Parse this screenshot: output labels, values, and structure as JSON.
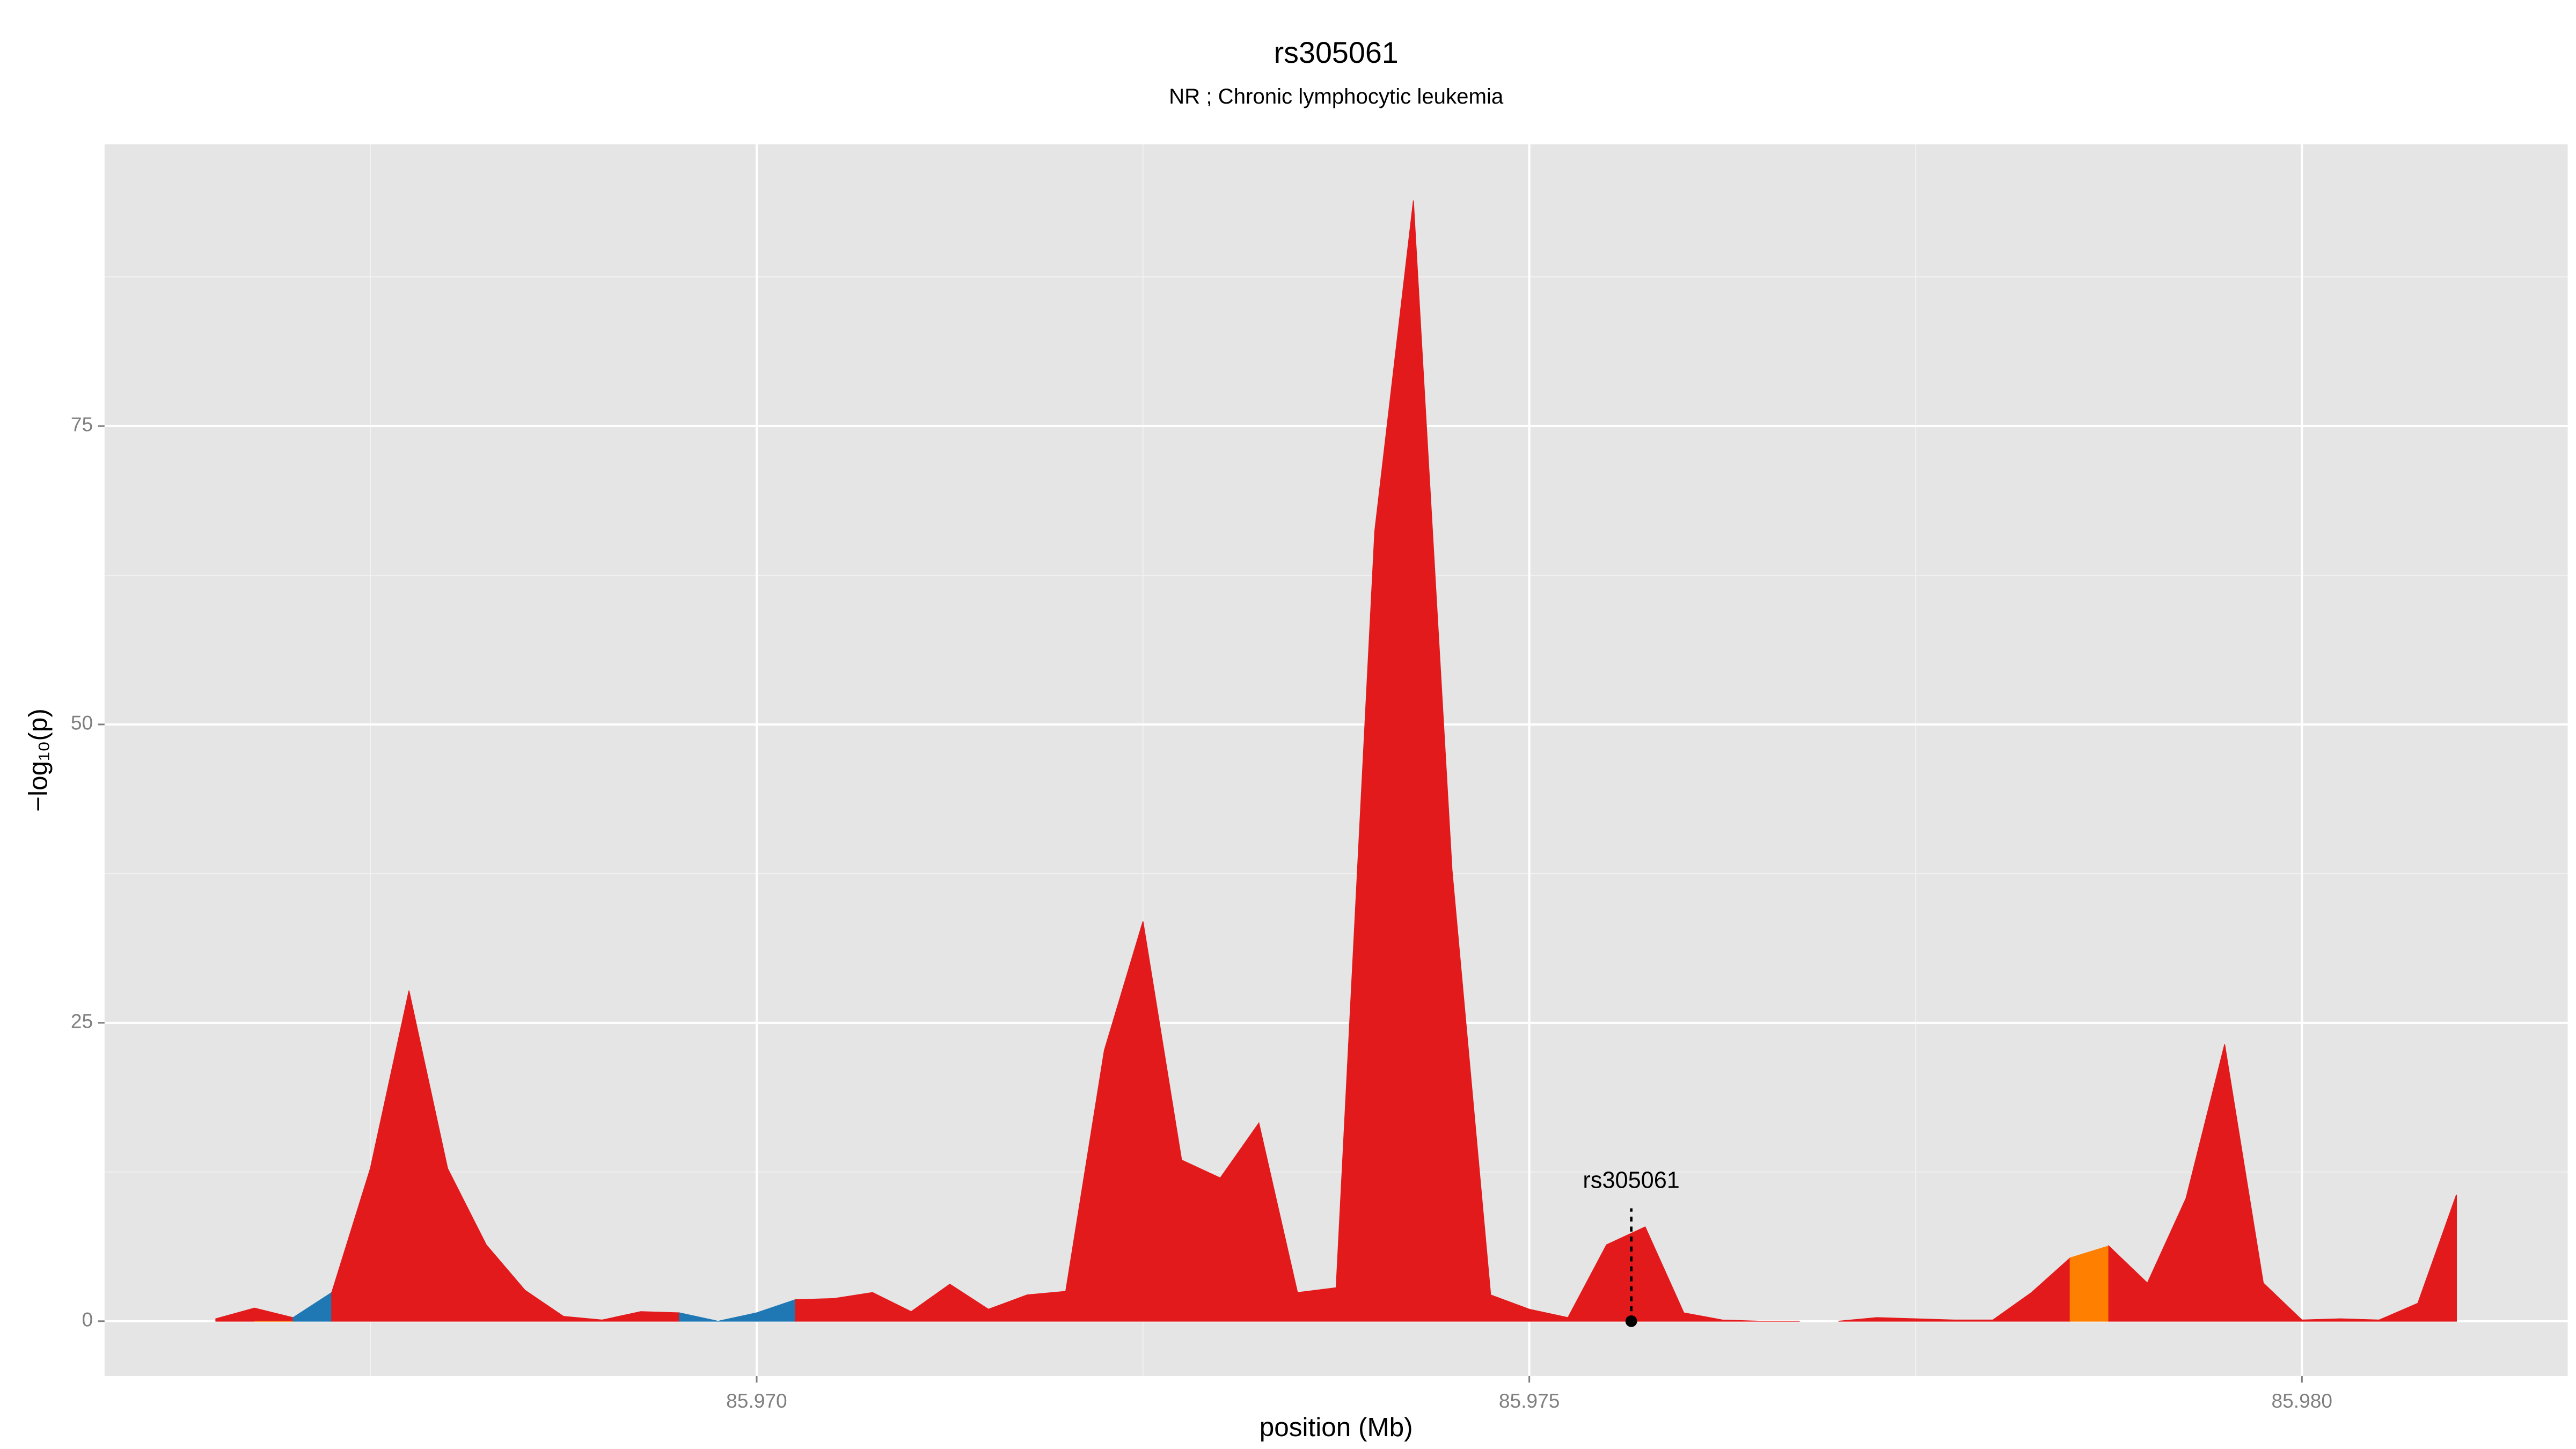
{
  "chart_data": {
    "type": "area",
    "title": "rs305061",
    "subtitle": "NR ; Chronic lymphocytic leukemia",
    "xlabel": "position (Mb)",
    "ylabel": "−log₁₀(p)",
    "xlim": [
      85.96578,
      85.98172
    ],
    "ylim": [
      -4.59,
      98.6
    ],
    "xticks": [
      {
        "value": 85.97,
        "label": "85.970"
      },
      {
        "value": 85.975,
        "label": "85.975"
      },
      {
        "value": 85.98,
        "label": "85.980"
      }
    ],
    "yticks": [
      0,
      25,
      50,
      75
    ],
    "grid": true,
    "series": [
      {
        "color": "#e31a1c",
        "x": [
          85.9665,
          85.96675,
          85.967
        ],
        "values": [
          0.2,
          1.1,
          0.3
        ]
      },
      {
        "color": "#1f78b4",
        "x": [
          85.967,
          85.96725
        ],
        "values": [
          0.3,
          2.4
        ]
      },
      {
        "color": "#e31a1c",
        "x": [
          85.96725,
          85.9675,
          85.96775,
          85.968,
          85.96825,
          85.9685,
          85.96875,
          85.969,
          85.96925,
          85.9695
        ],
        "values": [
          2.4,
          12.8,
          27.7,
          12.8,
          6.4,
          2.6,
          0.4,
          0.1,
          0.8,
          0.7
        ]
      },
      {
        "color": "#1f78b4",
        "x": [
          85.9695,
          85.96975,
          85.97,
          85.97025
        ],
        "values": [
          0.7,
          0.0,
          0.7,
          1.8
        ]
      },
      {
        "color": "#e31a1c",
        "x": [
          85.97025,
          85.9705,
          85.97075,
          85.971,
          85.97125,
          85.9715,
          85.97175,
          85.972,
          85.97225,
          85.9725,
          85.97275,
          85.973,
          85.97325,
          85.9735,
          85.97375,
          85.974,
          85.97425,
          85.9745,
          85.97475,
          85.975,
          85.97525,
          85.9755,
          85.97575,
          85.976,
          85.97625,
          85.9765,
          85.97675
        ],
        "values": [
          1.8,
          1.9,
          2.4,
          0.8,
          3.1,
          1.0,
          2.2,
          2.5,
          22.7,
          33.5,
          13.5,
          12.0,
          16.6,
          2.4,
          2.8,
          66.2,
          93.9,
          37.8,
          2.2,
          1.0,
          0.3,
          6.4,
          7.9,
          0.7,
          0.1,
          0.0,
          0.0
        ]
      },
      {
        "color": "#ff7f00",
        "x": [
          85.96675,
          85.967
        ],
        "values": [
          0.0,
          0.0
        ]
      },
      {
        "color": "#e31a1c",
        "x": [
          85.977,
          85.97725,
          85.9775,
          85.97775,
          85.978,
          85.97825,
          85.9785
        ],
        "values": [
          0.0,
          0.3,
          0.2,
          0.1,
          0.1,
          2.4,
          5.3
        ]
      },
      {
        "color": "#ff7f00",
        "x": [
          85.9785,
          85.97875
        ],
        "values": [
          5.3,
          6.3
        ]
      },
      {
        "color": "#e31a1c",
        "x": [
          85.97875,
          85.979,
          85.97925,
          85.9795,
          85.97975,
          85.98,
          85.98025,
          85.9805,
          85.98075,
          85.981
        ],
        "values": [
          6.3,
          3.2,
          10.3,
          23.2,
          3.2,
          0.1,
          0.2,
          0.1,
          1.5,
          10.6
        ]
      }
    ],
    "annotation": {
      "text": "rs305061",
      "x": 85.97566,
      "y": 0
    }
  }
}
